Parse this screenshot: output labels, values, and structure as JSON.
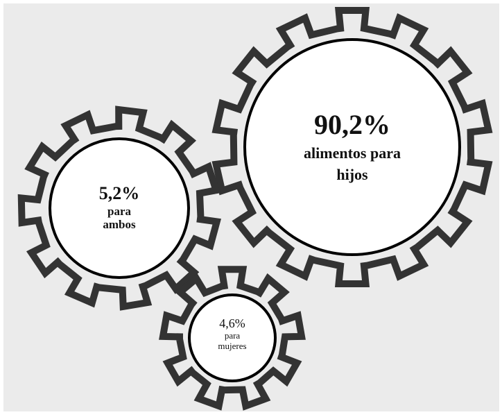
{
  "colors": {
    "background": "#ebebeb",
    "gear_outline": "#333333",
    "gear_face": "#ffffff",
    "text": "#111111"
  },
  "gears": {
    "big": {
      "percent": "90,2%",
      "line1": "alimentos para",
      "line2": "hijos"
    },
    "left": {
      "percent": "5,2%",
      "line1": "para",
      "line2": "ambos"
    },
    "small": {
      "percent": "4,6%",
      "line1": "para",
      "line2": "mujeres"
    }
  }
}
